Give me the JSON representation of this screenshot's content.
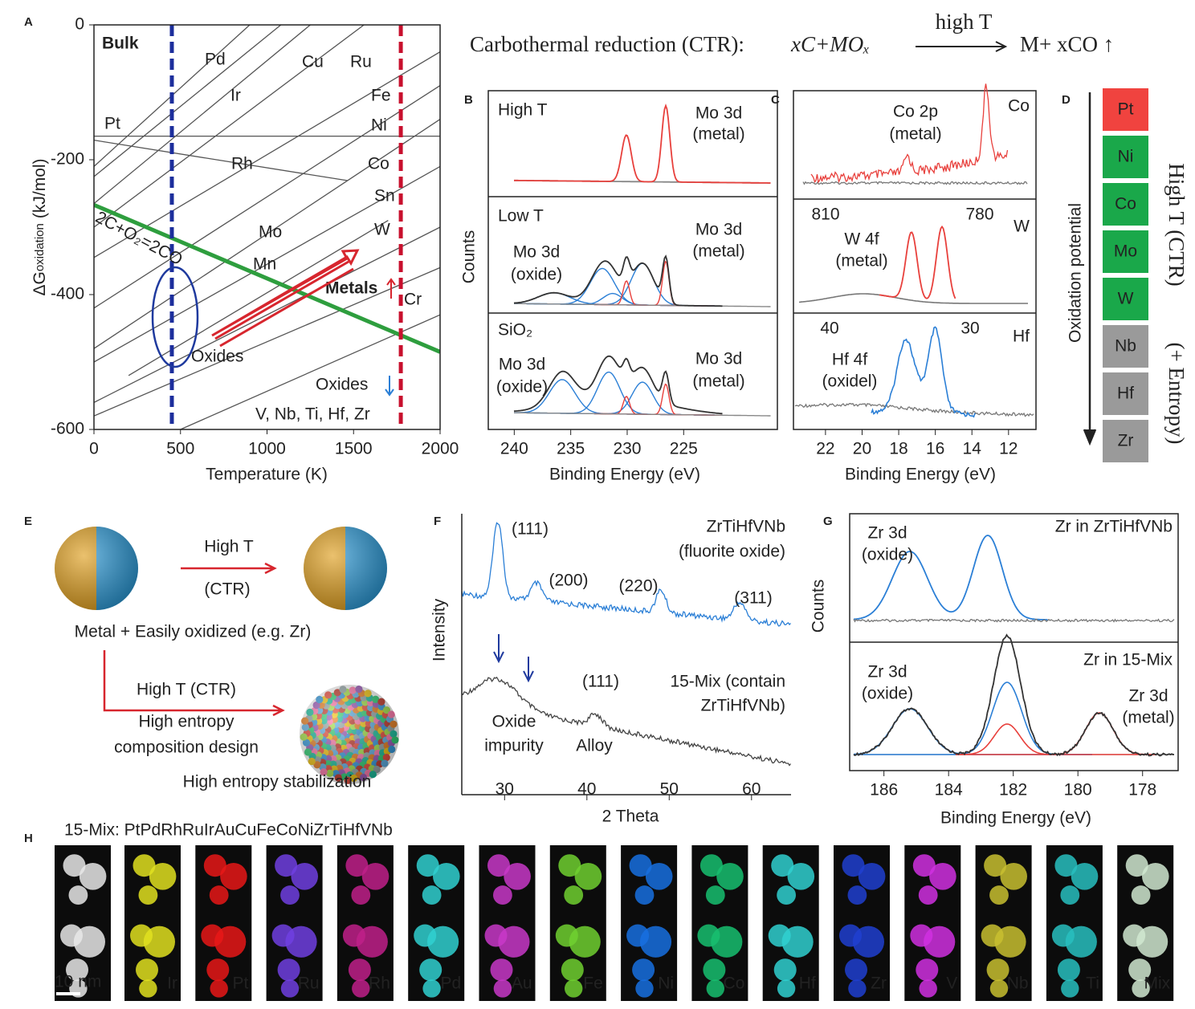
{
  "chart_data": {
    "type": "line",
    "label": "A",
    "title": "Bulk",
    "ylabel": "ΔG",
    "ylabel_sub": "oxidation",
    "ylabel_unit": "(kJ/mol)",
    "xlabel": "Temperature (K)",
    "xlim": [
      0,
      2000
    ],
    "xticks": [
      0,
      500,
      1000,
      1500,
      2000
    ],
    "ylim": [
      -600,
      0
    ],
    "yticks": [
      -600,
      -400,
      -200,
      0
    ],
    "series": [
      {
        "color": "#555555",
        "x": [
          0,
          1080
        ],
        "values": [
          -225,
          0
        ]
      },
      {
        "color": "#555555",
        "x": [
          0,
          900
        ],
        "values": [
          -210,
          0
        ]
      },
      {
        "color": "#555555",
        "x": [
          0,
          1250
        ],
        "values": [
          -265,
          0
        ]
      },
      {
        "color": "#555555",
        "x": [
          0,
          1560
        ],
        "values": [
          -300,
          0
        ]
      },
      {
        "color": "#555555",
        "x": [
          0,
          2000
        ],
        "values": [
          -345,
          -40
        ]
      },
      {
        "color": "#555555",
        "x": [
          0,
          2000
        ],
        "values": [
          -420,
          -90
        ]
      },
      {
        "color": "#555555",
        "x": [
          0,
          2000
        ],
        "values": [
          -480,
          -140
        ]
      },
      {
        "color": "#555555",
        "x": [
          0,
          2000
        ],
        "values": [
          -500,
          -210
        ]
      },
      {
        "color": "#555555",
        "x": [
          200,
          1700
        ],
        "values": [
          -520,
          -290
        ]
      },
      {
        "color": "#555555",
        "x": [
          0,
          2000
        ],
        "values": [
          -560,
          -300
        ]
      },
      {
        "color": "#555555",
        "x": [
          0,
          2000
        ],
        "values": [
          -580,
          -360
        ]
      },
      {
        "color": "#555555",
        "x": [
          500,
          2000
        ],
        "values": [
          -600,
          -430
        ]
      },
      {
        "color": "#555555",
        "x": [
          0,
          2000
        ],
        "values": [
          -165,
          -165
        ]
      },
      {
        "color": "#555555",
        "x": [
          0,
          1466
        ],
        "values": [
          -171,
          -231
        ]
      },
      {
        "color": "#2e9e3e",
        "x": [
          0,
          2000
        ],
        "values": [
          -267,
          -485
        ]
      }
    ],
    "vlines": [
      {
        "value": 450,
        "color": "#1c2e9c"
      },
      {
        "value": 1773,
        "color": "#c8102e"
      }
    ],
    "annotations": [
      "Pd",
      "Cu",
      "Ru",
      "Ir",
      "Fe",
      "Pt",
      "Ni",
      "Rh",
      "Co",
      "Sn",
      "Mo",
      "W",
      "Mn",
      "Metals",
      "Cr",
      "Oxides",
      "Oxides",
      "V, Nb, Ti, Hf, Zr",
      "2C+O₂=2CO"
    ]
  },
  "equation": {
    "prefix": "Carbothermal reduction (CTR):",
    "left": "xC+MOₓ",
    "over": "high T",
    "right": "M+ xCO ↑"
  },
  "panel_B": {
    "label": "B",
    "ylabel": "Counts",
    "xlabel": "Binding Energy (eV)",
    "xlim": [
      242.3,
      216.7
    ],
    "xticks": [
      240,
      235,
      230,
      225
    ],
    "texts": [
      "High T",
      "Mo 3d",
      "(metal)",
      "Low T",
      "Mo 3d",
      "(metal)",
      "Mo 3d",
      "(oxide)",
      "SiO₂",
      "Mo 3d",
      "(oxide)",
      "Mo 3d",
      "(metal)"
    ]
  },
  "panel_C": {
    "label": "C",
    "xlabel": "Binding Energy (eV)",
    "xlim": [
      23.75,
      10.5
    ],
    "xticks": [
      22,
      20,
      18,
      16,
      14,
      12
    ],
    "texts": [
      "Co",
      "Co 2p",
      "(metal)",
      "810",
      "780",
      "W",
      "W 4f",
      "(metal)",
      "40",
      "30",
      "Hf",
      "Hf 4f",
      "(oxidel)"
    ]
  },
  "panel_D": {
    "label": "D",
    "axis": "Oxidation potential",
    "side": [
      "High T (CTR)",
      "(+ Entropy)"
    ],
    "elements": [
      {
        "name": "Pt",
        "color": "#f0433f"
      },
      {
        "name": "Ni",
        "color": "#1aa84a"
      },
      {
        "name": "Co",
        "color": "#1aa84a"
      },
      {
        "name": "Mo",
        "color": "#1aa84a"
      },
      {
        "name": "W",
        "color": "#1aa84a"
      },
      {
        "name": "Nb",
        "color": "#9a9a9a"
      },
      {
        "name": "Hf",
        "color": "#9a9a9a"
      },
      {
        "name": "Zr",
        "color": "#9a9a9a"
      }
    ]
  },
  "panel_E": {
    "label": "E",
    "texts": [
      "High T",
      "(CTR)",
      "Metal + Easily oxidized (e.g. Zr)",
      "High T (CTR)",
      "High entropy",
      "composition design",
      "High entropy stabilization"
    ]
  },
  "panel_F": {
    "label": "F",
    "ylabel": "Intensity",
    "xlabel": "2 Theta",
    "xlim": [
      24.8,
      64.8
    ],
    "xticks": [
      30,
      40,
      50,
      60
    ],
    "texts": [
      "ZrTiHfVNb",
      "(fluorite oxide)",
      "(111)",
      "(200)",
      "(220)",
      "(311)",
      "15-Mix (contain",
      "ZrTiHfVNb)",
      "Oxide",
      "impurity",
      "(111)",
      "Alloy"
    ]
  },
  "panel_G": {
    "label": "G",
    "ylabel": "Counts",
    "xlabel": "Binding Energy (eV)",
    "xlim": [
      187.06,
      176.9
    ],
    "xticks": [
      186,
      184,
      182,
      180,
      178
    ],
    "texts": [
      "Zr in ZrTiHfVNb",
      "Zr 3d",
      "(oxide)",
      "Zr in 15-Mix",
      "Zr 3d",
      "(oxide)",
      "Zr 3d",
      "(metal)"
    ]
  },
  "panel_H": {
    "label": "H",
    "title": "15-Mix: PtPdRhRuIrAuCuFeCoNiZrTiHfVNb",
    "scale": "10 nm",
    "tiles": [
      "Ir",
      "Pt",
      "Ru",
      "Rh",
      "Pd",
      "Au",
      "Fe",
      "Ni",
      "Co",
      "Hf",
      "Zr",
      "V",
      "Nb",
      "Ti",
      "Mix"
    ]
  }
}
